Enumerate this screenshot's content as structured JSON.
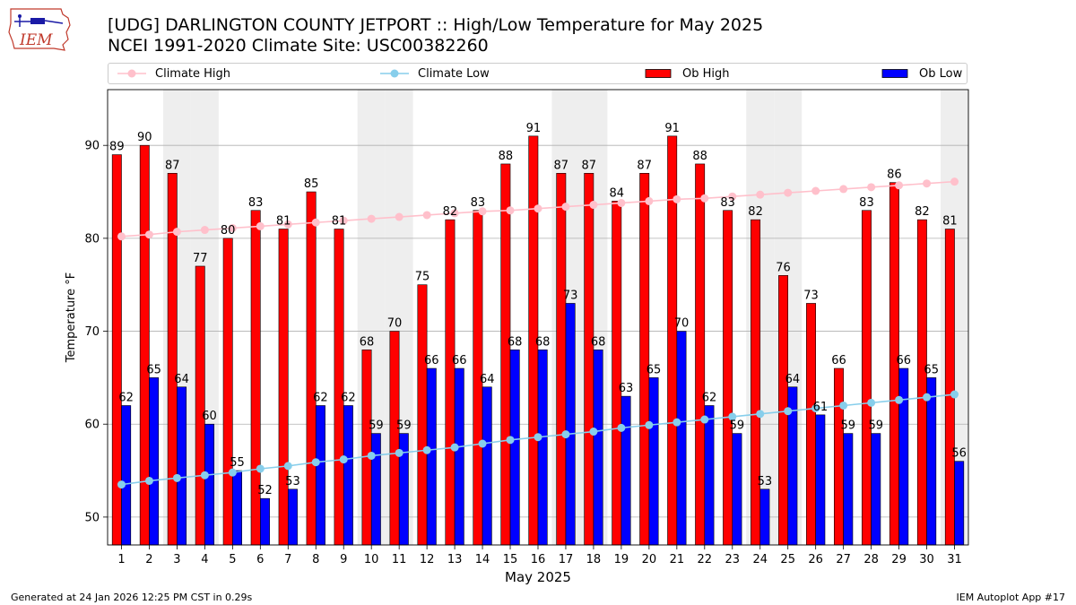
{
  "header": {
    "title_line1": "[UDG] DARLINGTON COUNTY JETPORT :: High/Low Temperature for May 2025",
    "title_line2": "NCEI 1991-2020 Climate Site: USC00382260",
    "logo_text": "IEM"
  },
  "footer": {
    "generated": "Generated at 24 Jan 2026 12:25 PM CST in 0.29s",
    "app": "IEM Autoplot App #17"
  },
  "legend": {
    "climate_high": "Climate High",
    "climate_low": "Climate Low",
    "ob_high": "Ob High",
    "ob_low": "Ob Low"
  },
  "colors": {
    "ob_high": "#ff0000",
    "ob_low": "#0000ff",
    "climate_high": "#ffc0cb",
    "climate_low": "#87ceeb",
    "weekend_shade": "#eeeeee",
    "grid": "#b0b0b0"
  },
  "chart_data": {
    "type": "bar",
    "title": "[UDG] DARLINGTON COUNTY JETPORT :: High/Low Temperature for May 2025",
    "xlabel": "May 2025",
    "ylabel": "Temperature °F",
    "ylim": [
      47,
      96
    ],
    "yticks": [
      50,
      60,
      70,
      80,
      90
    ],
    "grid": true,
    "legend_position": "top",
    "categories": [
      "1",
      "2",
      "3",
      "4",
      "5",
      "6",
      "7",
      "8",
      "9",
      "10",
      "11",
      "12",
      "13",
      "14",
      "15",
      "16",
      "17",
      "18",
      "19",
      "20",
      "21",
      "22",
      "23",
      "24",
      "25",
      "26",
      "27",
      "28",
      "29",
      "30",
      "31"
    ],
    "series": [
      {
        "name": "Ob High",
        "type": "bar",
        "values": [
          89,
          90,
          87,
          77,
          80,
          83,
          81,
          85,
          81,
          68,
          70,
          75,
          82,
          83,
          88,
          91,
          87,
          87,
          84,
          87,
          91,
          88,
          83,
          82,
          76,
          73,
          66,
          83,
          86,
          82,
          81
        ]
      },
      {
        "name": "Ob Low",
        "type": "bar",
        "values": [
          62,
          65,
          64,
          60,
          55,
          52,
          53,
          62,
          62,
          59,
          59,
          66,
          66,
          64,
          68,
          68,
          73,
          68,
          63,
          65,
          70,
          62,
          59,
          53,
          64,
          61,
          59,
          59,
          66,
          65,
          56
        ]
      },
      {
        "name": "Climate High",
        "type": "line",
        "values": [
          80.2,
          80.4,
          80.7,
          80.9,
          81.1,
          81.3,
          81.5,
          81.7,
          81.9,
          82.1,
          82.3,
          82.5,
          82.7,
          82.9,
          83.0,
          83.2,
          83.4,
          83.6,
          83.8,
          84.0,
          84.2,
          84.3,
          84.5,
          84.7,
          84.9,
          85.1,
          85.3,
          85.5,
          85.7,
          85.9,
          86.1
        ]
      },
      {
        "name": "Climate Low",
        "type": "line",
        "values": [
          53.5,
          53.9,
          54.2,
          54.5,
          54.8,
          55.2,
          55.5,
          55.9,
          56.2,
          56.6,
          56.9,
          57.2,
          57.5,
          57.9,
          58.3,
          58.6,
          58.9,
          59.2,
          59.6,
          59.9,
          60.2,
          60.5,
          60.8,
          61.1,
          61.4,
          61.7,
          62.0,
          62.3,
          62.6,
          62.9,
          63.2
        ]
      }
    ],
    "weekend_days": [
      3,
      4,
      10,
      11,
      17,
      18,
      24,
      25,
      31
    ]
  }
}
